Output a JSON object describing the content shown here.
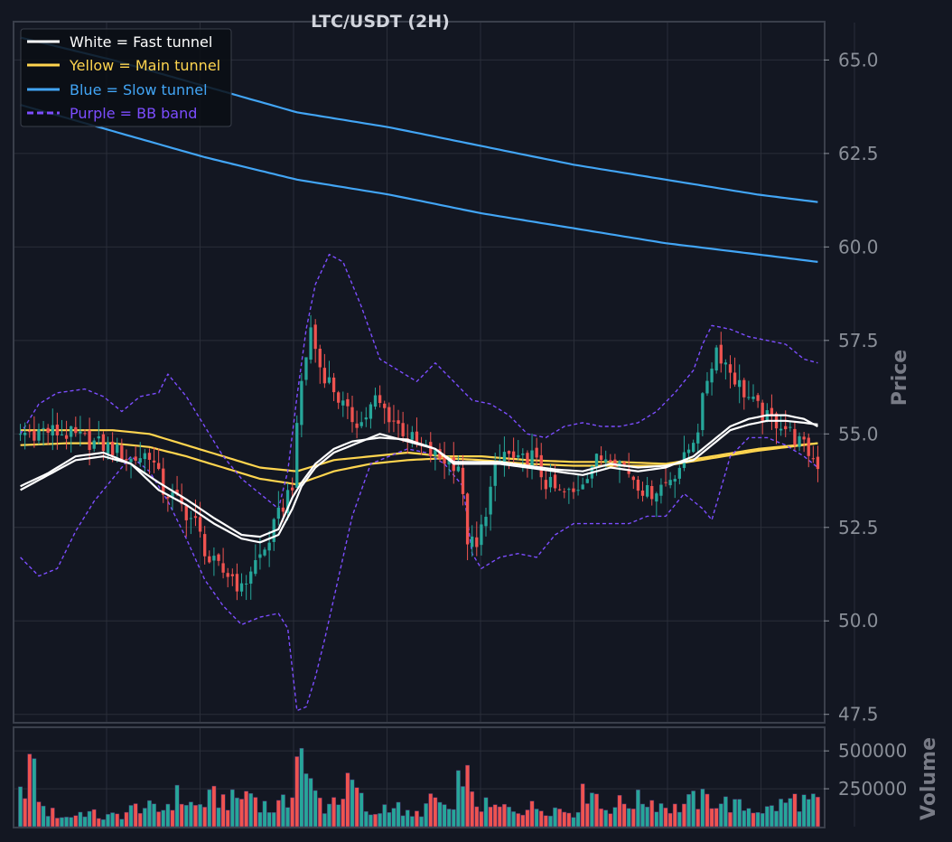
{
  "chart_data": {
    "type": "candlestick",
    "title": "LTC/USDT (2H)",
    "price_axis": {
      "label": "Price",
      "ylim": [
        47.3,
        66.0
      ],
      "ticks": [
        "65.0",
        "62.5",
        "60.0",
        "57.5",
        "55.0",
        "52.5",
        "50.0",
        "47.5"
      ],
      "tick_values": [
        65.0,
        62.5,
        60.0,
        57.5,
        55.0,
        52.5,
        50.0,
        47.5
      ],
      "side": "right"
    },
    "volume_axis": {
      "label": "Volume",
      "ylim": [
        0,
        650000
      ],
      "ticks": [
        "500000",
        "250000"
      ],
      "tick_values": [
        500000,
        250000
      ],
      "side": "right"
    },
    "grid": true,
    "legend_position": "top-left",
    "legend": [
      {
        "label": "White = Fast tunnel",
        "color": "#ffffff",
        "style": "solid"
      },
      {
        "label": "Yellow = Main tunnel",
        "color": "#ffd54f",
        "style": "solid"
      },
      {
        "label": "Blue = Slow tunnel",
        "color": "#42a5f5",
        "style": "solid"
      },
      {
        "label": "Purple = BB band",
        "color": "#7c4dff",
        "style": "dashed"
      }
    ],
    "colors": {
      "background": "#131722",
      "up": "#26a69a",
      "down": "#ef5350",
      "grid": "#2a2e39",
      "axis_text": "#8a8f98",
      "title_text": "#d1d4dc"
    },
    "candle_count": 174,
    "price_anchors": {
      "x": [
        0,
        5,
        10,
        15,
        20,
        24,
        28,
        31,
        34,
        38,
        41,
        44,
        46,
        48,
        50,
        53,
        56,
        59,
        61,
        63,
        65,
        68,
        71,
        74,
        77,
        80,
        83,
        86,
        90,
        95,
        97,
        99,
        101,
        103,
        105,
        108,
        111,
        114,
        117,
        120,
        124,
        128,
        132,
        136,
        140,
        144,
        147,
        149,
        151,
        153,
        156,
        159,
        162,
        165,
        168,
        171,
        173
      ],
      "y": [
        55.0,
        55.1,
        55.0,
        54.8,
        54.6,
        54.3,
        54.5,
        53.5,
        53.2,
        52.6,
        51.6,
        51.3,
        51.2,
        50.8,
        51.4,
        51.9,
        52.8,
        53.7,
        56.4,
        57.8,
        56.8,
        56.2,
        55.5,
        55.3,
        55.9,
        55.5,
        55.1,
        54.7,
        54.4,
        54.2,
        52.2,
        51.9,
        53.0,
        54.0,
        54.5,
        54.2,
        54.4,
        53.7,
        53.4,
        53.4,
        54.2,
        54.5,
        54.0,
        53.4,
        53.7,
        54.3,
        55.2,
        56.5,
        57.3,
        56.9,
        56.3,
        55.8,
        55.4,
        55.3,
        54.9,
        54.5,
        54.2
      ]
    },
    "volume_anchors": {
      "x": [
        0,
        2,
        5,
        10,
        14,
        18,
        22,
        26,
        30,
        34,
        38,
        42,
        46,
        50,
        54,
        58,
        60,
        61,
        62,
        66,
        72,
        76,
        80,
        85,
        90,
        94,
        96,
        98,
        102,
        108,
        114,
        120,
        124,
        126,
        130,
        136,
        142,
        146,
        150,
        156,
        162,
        168,
        173
      ],
      "y": [
        200000,
        430000,
        110000,
        60000,
        100000,
        60000,
        80000,
        140000,
        100000,
        200000,
        130000,
        190000,
        170000,
        230000,
        110000,
        160000,
        450000,
        580000,
        300000,
        130000,
        280000,
        60000,
        160000,
        60000,
        180000,
        80000,
        460000,
        170000,
        120000,
        120000,
        130000,
        100000,
        300000,
        120000,
        150000,
        180000,
        120000,
        170000,
        180000,
        130000,
        110000,
        180000,
        150000
      ]
    },
    "fast_tunnel": {
      "x": [
        0,
        6,
        12,
        18,
        24,
        30,
        36,
        42,
        48,
        52,
        56,
        59,
        61,
        64,
        68,
        72,
        78,
        84,
        90,
        94,
        98,
        104,
        110,
        116,
        122,
        128,
        134,
        140,
        146,
        150,
        154,
        158,
        162,
        166,
        170,
        173
      ],
      "y": [
        53.5,
        53.9,
        54.3,
        54.4,
        54.2,
        53.5,
        53.1,
        52.6,
        52.2,
        52.1,
        52.3,
        53.0,
        53.6,
        54.1,
        54.5,
        54.7,
        55.0,
        54.8,
        54.6,
        54.2,
        54.2,
        54.2,
        54.1,
        54.0,
        53.9,
        54.1,
        54.0,
        54.1,
        54.4,
        54.8,
        55.2,
        55.4,
        55.5,
        55.5,
        55.4,
        55.2
      ]
    },
    "fast_tunnel_2": {
      "x": [
        0,
        6,
        12,
        18,
        24,
        30,
        36,
        42,
        48,
        52,
        56,
        59,
        61,
        64,
        68,
        72,
        78,
        84,
        90,
        94,
        98,
        104,
        110,
        116,
        122,
        128,
        134,
        140,
        146,
        150,
        154,
        158,
        162,
        166,
        170,
        173
      ],
      "y": [
        53.6,
        53.95,
        54.4,
        54.5,
        54.2,
        53.7,
        53.25,
        52.75,
        52.3,
        52.25,
        52.45,
        53.3,
        53.7,
        54.2,
        54.6,
        54.8,
        54.9,
        54.85,
        54.6,
        54.25,
        54.25,
        54.25,
        54.15,
        54.05,
        54.0,
        54.2,
        54.1,
        54.15,
        54.3,
        54.7,
        55.1,
        55.25,
        55.35,
        55.35,
        55.3,
        55.25
      ]
    },
    "main_tunnel": {
      "x": [
        0,
        10,
        20,
        28,
        36,
        44,
        52,
        60,
        68,
        76,
        84,
        92,
        100,
        110,
        120,
        130,
        140,
        150,
        160,
        173
      ],
      "y": [
        55.1,
        55.1,
        55.1,
        55.0,
        54.7,
        54.4,
        54.1,
        54.0,
        54.3,
        54.4,
        54.5,
        54.4,
        54.4,
        54.3,
        54.25,
        54.25,
        54.2,
        54.4,
        54.6,
        54.75
      ]
    },
    "main_tunnel_2": {
      "x": [
        0,
        10,
        20,
        28,
        36,
        44,
        52,
        60,
        68,
        76,
        84,
        92,
        100,
        110,
        120,
        130,
        140,
        150,
        160,
        173
      ],
      "y": [
        54.7,
        54.75,
        54.75,
        54.65,
        54.4,
        54.1,
        53.8,
        53.65,
        54.0,
        54.2,
        54.3,
        54.35,
        54.3,
        54.2,
        54.15,
        54.15,
        54.15,
        54.35,
        54.55,
        54.75
      ]
    },
    "slow_tunnel": {
      "x": [
        0,
        20,
        40,
        60,
        80,
        100,
        120,
        140,
        160,
        173
      ],
      "y": [
        65.6,
        65.0,
        64.3,
        63.6,
        63.2,
        62.7,
        62.2,
        61.8,
        61.4,
        61.2
      ]
    },
    "slow_tunnel_2": {
      "x": [
        0,
        20,
        40,
        60,
        80,
        100,
        120,
        140,
        160,
        173
      ],
      "y": [
        63.8,
        63.1,
        62.4,
        61.8,
        61.4,
        60.9,
        60.5,
        60.1,
        59.8,
        59.6
      ]
    },
    "bb_upper": {
      "x": [
        0,
        4,
        8,
        14,
        18,
        22,
        26,
        30,
        32,
        36,
        40,
        44,
        48,
        52,
        56,
        58,
        60,
        62,
        64,
        67,
        70,
        74,
        78,
        82,
        86,
        90,
        94,
        98,
        102,
        106,
        110,
        114,
        118,
        122,
        126,
        130,
        134,
        138,
        142,
        146,
        148,
        150,
        154,
        158,
        162,
        166,
        170,
        173
      ],
      "y": [
        55.0,
        55.8,
        56.1,
        56.2,
        56.0,
        55.6,
        56.0,
        56.1,
        56.6,
        56.0,
        55.2,
        54.4,
        53.8,
        53.4,
        53.0,
        54.0,
        56.0,
        57.8,
        59.0,
        59.8,
        59.6,
        58.4,
        57.0,
        56.7,
        56.4,
        56.9,
        56.4,
        55.9,
        55.8,
        55.5,
        55.0,
        54.9,
        55.2,
        55.3,
        55.2,
        55.2,
        55.3,
        55.6,
        56.1,
        56.7,
        57.4,
        57.9,
        57.8,
        57.6,
        57.5,
        57.4,
        57.0,
        56.9
      ]
    },
    "bb_lower": {
      "x": [
        0,
        4,
        8,
        12,
        16,
        20,
        24,
        28,
        32,
        36,
        40,
        44,
        48,
        52,
        56,
        58,
        60,
        62,
        64,
        66,
        68,
        72,
        76,
        80,
        84,
        88,
        92,
        96,
        98,
        100,
        104,
        108,
        112,
        116,
        120,
        124,
        128,
        132,
        136,
        140,
        144,
        148,
        150,
        154,
        158,
        162,
        166,
        170,
        173
      ],
      "y": [
        51.7,
        51.2,
        51.4,
        52.4,
        53.2,
        53.8,
        54.4,
        54.0,
        53.2,
        52.2,
        51.1,
        50.4,
        49.9,
        50.1,
        50.2,
        49.8,
        47.6,
        47.7,
        48.5,
        49.5,
        50.6,
        52.8,
        54.2,
        54.4,
        54.6,
        54.5,
        54.2,
        53.6,
        51.8,
        51.4,
        51.7,
        51.8,
        51.7,
        52.3,
        52.6,
        52.6,
        52.6,
        52.6,
        52.8,
        52.8,
        53.4,
        53.0,
        52.7,
        54.4,
        54.9,
        54.9,
        54.7,
        54.4,
        54.1
      ]
    }
  }
}
